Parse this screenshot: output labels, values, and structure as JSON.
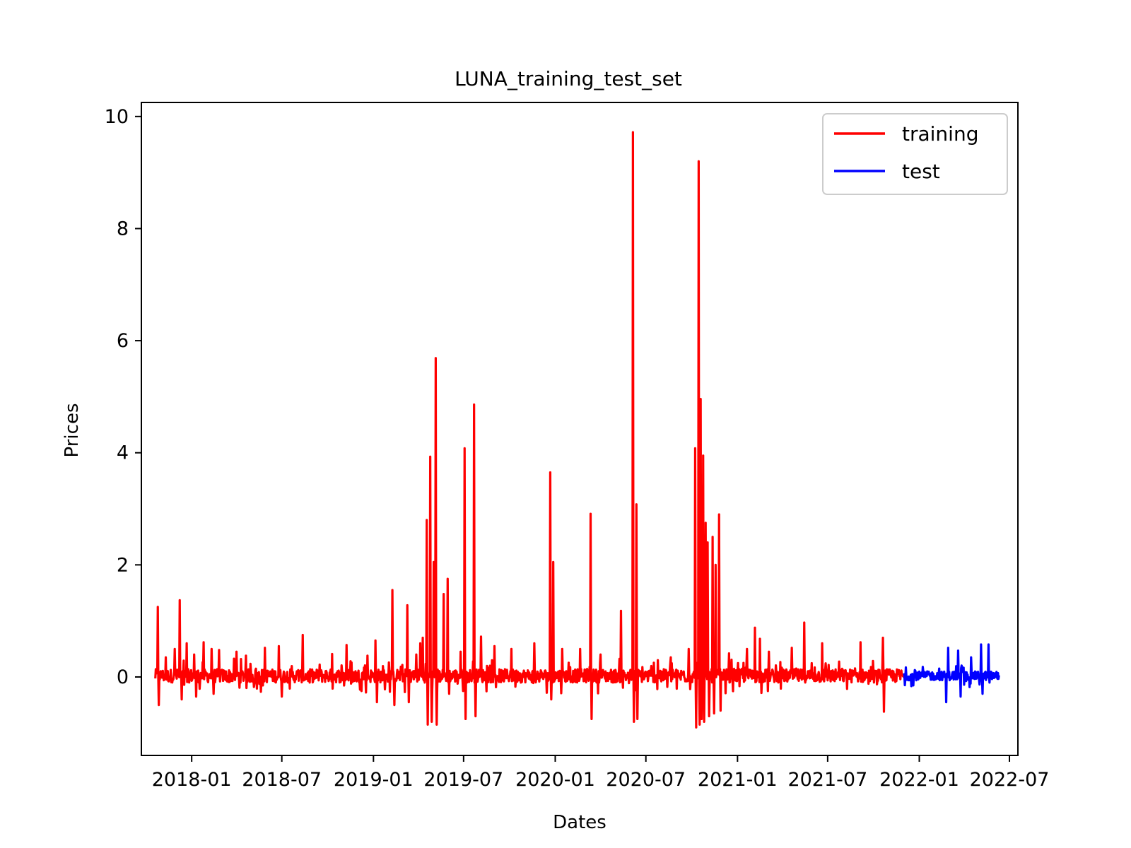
{
  "chart_data": {
    "type": "line",
    "title": "LUNA_training_test_set",
    "xlabel": "Dates",
    "ylabel": "Prices",
    "x_tick_labels": [
      "2018-01",
      "2018-07",
      "2019-01",
      "2019-07",
      "2020-01",
      "2020-07",
      "2021-01",
      "2021-07",
      "2022-01",
      "2022-07"
    ],
    "y_tick_labels": [
      "0",
      "2",
      "4",
      "6",
      "8",
      "10"
    ],
    "xlim": [
      "2017-09-22",
      "2022-07-18"
    ],
    "ylim": [
      -1.4,
      10.25
    ],
    "grid": false,
    "legend_position": "top-right",
    "series": [
      {
        "name": "training",
        "color": "#ff0000",
        "x_range": [
          "2017-10-20",
          "2021-12-01"
        ],
        "baseline_noise": 0.12,
        "spikes": [
          {
            "date": "2017-10-25",
            "value": 1.25
          },
          {
            "date": "2017-10-27",
            "value": -0.5
          },
          {
            "date": "2017-11-10",
            "value": 0.35
          },
          {
            "date": "2017-11-28",
            "value": 0.5
          },
          {
            "date": "2017-12-08",
            "value": 1.37
          },
          {
            "date": "2017-12-12",
            "value": -0.4
          },
          {
            "date": "2017-12-22",
            "value": 0.6
          },
          {
            "date": "2018-01-06",
            "value": 0.4
          },
          {
            "date": "2018-01-10",
            "value": -0.35
          },
          {
            "date": "2018-01-25",
            "value": 0.62
          },
          {
            "date": "2018-02-10",
            "value": 0.5
          },
          {
            "date": "2018-02-14",
            "value": -0.3
          },
          {
            "date": "2018-02-25",
            "value": 0.48
          },
          {
            "date": "2018-04-01",
            "value": 0.45
          },
          {
            "date": "2018-04-20",
            "value": 0.38
          },
          {
            "date": "2018-05-28",
            "value": 0.52
          },
          {
            "date": "2018-06-25",
            "value": 0.55
          },
          {
            "date": "2018-07-01",
            "value": -0.35
          },
          {
            "date": "2018-08-12",
            "value": 0.75
          },
          {
            "date": "2018-09-15",
            "value": 0.22
          },
          {
            "date": "2018-10-10",
            "value": 0.41
          },
          {
            "date": "2018-11-08",
            "value": 0.57
          },
          {
            "date": "2018-12-20",
            "value": 0.38
          },
          {
            "date": "2019-01-05",
            "value": 0.65
          },
          {
            "date": "2019-01-08",
            "value": -0.45
          },
          {
            "date": "2019-02-08",
            "value": 1.55
          },
          {
            "date": "2019-02-12",
            "value": -0.5
          },
          {
            "date": "2019-03-10",
            "value": 1.28
          },
          {
            "date": "2019-03-13",
            "value": -0.45
          },
          {
            "date": "2019-03-28",
            "value": 0.4
          },
          {
            "date": "2019-04-05",
            "value": 0.6
          },
          {
            "date": "2019-04-10",
            "value": 0.7
          },
          {
            "date": "2019-04-18",
            "value": 2.8
          },
          {
            "date": "2019-04-20",
            "value": -0.85
          },
          {
            "date": "2019-04-25",
            "value": 3.93
          },
          {
            "date": "2019-04-28",
            "value": -0.8
          },
          {
            "date": "2019-05-02",
            "value": 2.05
          },
          {
            "date": "2019-05-06",
            "value": 5.69
          },
          {
            "date": "2019-05-08",
            "value": -0.85
          },
          {
            "date": "2019-05-22",
            "value": 1.48
          },
          {
            "date": "2019-05-30",
            "value": 1.75
          },
          {
            "date": "2019-06-02",
            "value": -0.3
          },
          {
            "date": "2019-06-25",
            "value": 0.45
          },
          {
            "date": "2019-07-03",
            "value": 4.08
          },
          {
            "date": "2019-07-05",
            "value": -0.75
          },
          {
            "date": "2019-07-22",
            "value": 4.86
          },
          {
            "date": "2019-07-25",
            "value": -0.7
          },
          {
            "date": "2019-08-05",
            "value": 0.72
          },
          {
            "date": "2019-09-01",
            "value": 0.55
          },
          {
            "date": "2019-10-05",
            "value": 0.5
          },
          {
            "date": "2019-11-20",
            "value": 0.6
          },
          {
            "date": "2019-12-22",
            "value": 3.65
          },
          {
            "date": "2019-12-24",
            "value": -0.4
          },
          {
            "date": "2019-12-28",
            "value": 2.05
          },
          {
            "date": "2020-01-15",
            "value": 0.5
          },
          {
            "date": "2020-02-20",
            "value": 0.5
          },
          {
            "date": "2020-03-12",
            "value": 2.91
          },
          {
            "date": "2020-03-14",
            "value": -0.75
          },
          {
            "date": "2020-04-01",
            "value": 0.4
          },
          {
            "date": "2020-05-12",
            "value": 1.18
          },
          {
            "date": "2020-06-05",
            "value": 9.72
          },
          {
            "date": "2020-06-07",
            "value": -0.8
          },
          {
            "date": "2020-06-12",
            "value": 3.08
          },
          {
            "date": "2020-06-14",
            "value": -0.75
          },
          {
            "date": "2020-07-25",
            "value": 0.3
          },
          {
            "date": "2020-08-20",
            "value": 0.35
          },
          {
            "date": "2020-09-25",
            "value": 0.5
          },
          {
            "date": "2020-10-08",
            "value": 4.08
          },
          {
            "date": "2020-10-10",
            "value": -0.9
          },
          {
            "date": "2020-10-15",
            "value": 9.2
          },
          {
            "date": "2020-10-17",
            "value": -0.85
          },
          {
            "date": "2020-10-19",
            "value": 4.96
          },
          {
            "date": "2020-10-21",
            "value": -0.75
          },
          {
            "date": "2020-10-24",
            "value": 3.95
          },
          {
            "date": "2020-10-26",
            "value": -0.8
          },
          {
            "date": "2020-10-29",
            "value": 2.75
          },
          {
            "date": "2020-11-02",
            "value": 2.4
          },
          {
            "date": "2020-11-05",
            "value": -0.7
          },
          {
            "date": "2020-11-12",
            "value": 2.5
          },
          {
            "date": "2020-11-15",
            "value": -0.65
          },
          {
            "date": "2020-11-18",
            "value": 2.0
          },
          {
            "date": "2020-11-25",
            "value": 2.9
          },
          {
            "date": "2020-11-28",
            "value": -0.6
          },
          {
            "date": "2020-12-15",
            "value": 0.42
          },
          {
            "date": "2021-01-20",
            "value": 0.5
          },
          {
            "date": "2021-02-05",
            "value": 0.88
          },
          {
            "date": "2021-02-15",
            "value": 0.68
          },
          {
            "date": "2021-03-05",
            "value": 0.45
          },
          {
            "date": "2021-04-20",
            "value": 0.52
          },
          {
            "date": "2021-05-15",
            "value": 0.97
          },
          {
            "date": "2021-06-20",
            "value": 0.6
          },
          {
            "date": "2021-09-05",
            "value": 0.62
          },
          {
            "date": "2021-10-20",
            "value": 0.7
          },
          {
            "date": "2021-10-22",
            "value": -0.62
          }
        ]
      },
      {
        "name": "test",
        "color": "#0000ff",
        "x_range": [
          "2021-12-01",
          "2022-06-10"
        ],
        "baseline_noise": 0.08,
        "spikes": [
          {
            "date": "2021-12-05",
            "value": 0.17
          },
          {
            "date": "2021-12-20",
            "value": -0.15
          },
          {
            "date": "2022-01-08",
            "value": 0.18
          },
          {
            "date": "2022-02-10",
            "value": 0.15
          },
          {
            "date": "2022-02-28",
            "value": 0.52
          },
          {
            "date": "2022-02-24",
            "value": -0.45
          },
          {
            "date": "2022-03-20",
            "value": 0.47
          },
          {
            "date": "2022-03-25",
            "value": -0.35
          },
          {
            "date": "2022-04-15",
            "value": 0.35
          },
          {
            "date": "2022-05-05",
            "value": 0.58
          },
          {
            "date": "2022-05-08",
            "value": -0.3
          },
          {
            "date": "2022-05-20",
            "value": 0.58
          },
          {
            "date": "2022-05-22",
            "value": -0.1
          }
        ]
      }
    ]
  }
}
